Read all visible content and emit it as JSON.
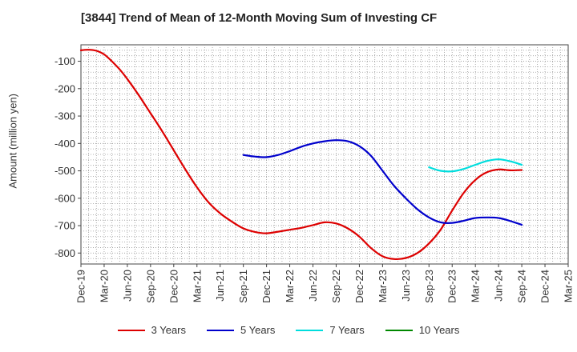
{
  "chart_data": {
    "type": "line",
    "title": "[3844]  Trend of Mean of 12-Month Moving Sum of Investing CF",
    "xlabel": "",
    "ylabel": "Amount (million yen)",
    "ylim": [
      -840,
      -40
    ],
    "yticks": [
      -100,
      -200,
      -300,
      -400,
      -500,
      -600,
      -700,
      -800
    ],
    "x_categories": [
      "Dec-19",
      "Mar-20",
      "Jun-20",
      "Sep-20",
      "Dec-20",
      "Mar-21",
      "Jun-21",
      "Sep-21",
      "Dec-21",
      "Mar-22",
      "Jun-22",
      "Sep-22",
      "Dec-22",
      "Mar-23",
      "Jun-23",
      "Sep-23",
      "Dec-23",
      "Mar-24",
      "Jun-24",
      "Sep-24",
      "Dec-24",
      "Mar-25"
    ],
    "grid": true,
    "series": [
      {
        "name": "3 Years",
        "color": "#dd0000",
        "x": [
          0,
          0.33,
          0.67,
          1,
          1.33,
          1.67,
          2,
          2.5,
          3,
          3.5,
          4,
          4.5,
          5,
          5.5,
          6,
          6.5,
          7,
          7.5,
          8,
          8.5,
          9,
          9.5,
          10,
          10.5,
          11,
          11.5,
          12,
          12.5,
          13,
          13.5,
          14,
          14.5,
          15,
          15.5,
          16,
          16.5,
          17,
          17.5,
          18,
          18.5,
          19
        ],
        "values": [
          -60,
          -58,
          -62,
          -75,
          -100,
          -130,
          -165,
          -225,
          -290,
          -355,
          -425,
          -495,
          -560,
          -615,
          -655,
          -685,
          -710,
          -723,
          -728,
          -722,
          -715,
          -708,
          -698,
          -688,
          -692,
          -710,
          -740,
          -782,
          -812,
          -822,
          -818,
          -800,
          -765,
          -715,
          -645,
          -580,
          -533,
          -505,
          -495,
          -498,
          -497
        ]
      },
      {
        "name": "5 Years",
        "color": "#0000cc",
        "x": [
          7,
          7.5,
          8,
          8.5,
          9,
          9.5,
          10,
          10.5,
          11,
          11.5,
          12,
          12.5,
          13,
          13.5,
          14,
          14.5,
          15,
          15.5,
          16,
          16.5,
          17,
          17.5,
          18,
          18.5,
          19
        ],
        "values": [
          -442,
          -448,
          -450,
          -442,
          -428,
          -412,
          -400,
          -392,
          -388,
          -392,
          -410,
          -445,
          -500,
          -555,
          -600,
          -640,
          -670,
          -688,
          -690,
          -682,
          -672,
          -670,
          -672,
          -683,
          -697
        ]
      },
      {
        "name": "7 Years",
        "color": "#00dddd",
        "x": [
          15,
          15.5,
          16,
          16.5,
          17,
          17.5,
          18,
          18.5,
          19
        ],
        "values": [
          -487,
          -500,
          -502,
          -493,
          -478,
          -464,
          -458,
          -465,
          -478
        ]
      },
      {
        "name": "10 Years",
        "color": "#008800",
        "x": [],
        "values": []
      }
    ]
  }
}
